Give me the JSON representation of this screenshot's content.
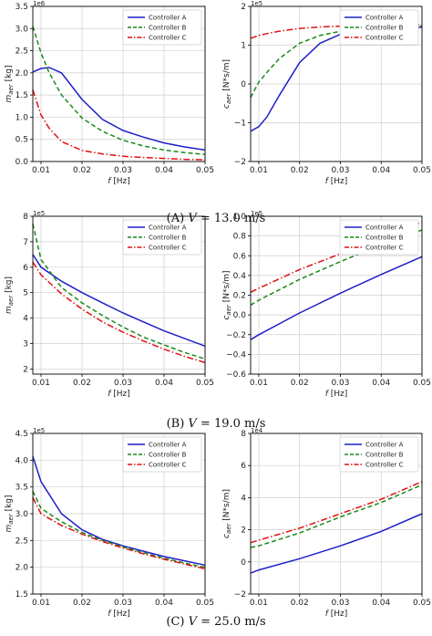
{
  "colors": {
    "Controller A": "#1f1fc8",
    "Controller B": "#1a8a1a",
    "Controller C": "#e01010"
  },
  "captions": [
    "(A) V = 13.0 m/s",
    "(B) V = 19.0 m/s",
    "(C) V = 25.0 m/s"
  ],
  "chart_data": [
    {
      "type": "line",
      "row": 0,
      "col": 0,
      "xlabel": "f [Hz]",
      "ylabel": "m_aer [kg]",
      "multiplier": "1e6",
      "xlim": [
        0.008,
        0.05
      ],
      "ylim": [
        0,
        3.5
      ],
      "xticks": [
        "0.01",
        "0.02",
        "0.03",
        "0.04",
        "0.05"
      ],
      "xtick_values": [
        0.01,
        0.02,
        0.03,
        0.04,
        0.05
      ],
      "yticks": [
        "0.0",
        "0.5",
        "1.0",
        "1.5",
        "2.0",
        "2.5",
        "3.0",
        "3.5"
      ],
      "ytick_values": [
        0,
        0.5,
        1,
        1.5,
        2,
        2.5,
        3,
        3.5
      ],
      "legend": "top-right",
      "x": [
        0.008,
        0.01,
        0.012,
        0.015,
        0.02,
        0.025,
        0.03,
        0.035,
        0.04,
        0.045,
        0.05
      ],
      "series": [
        {
          "name": "Controller A",
          "style": "solid",
          "values": [
            2.02,
            2.1,
            2.12,
            2.0,
            1.4,
            0.95,
            0.7,
            0.55,
            0.42,
            0.33,
            0.26
          ]
        },
        {
          "name": "Controller B",
          "style": "dashed",
          "values": [
            3.05,
            2.45,
            2.0,
            1.5,
            0.98,
            0.68,
            0.48,
            0.35,
            0.26,
            0.2,
            0.16
          ]
        },
        {
          "name": "Controller C",
          "style": "dashdot",
          "values": [
            1.62,
            1.05,
            0.75,
            0.45,
            0.25,
            0.17,
            0.12,
            0.09,
            0.07,
            0.05,
            0.04
          ]
        }
      ]
    },
    {
      "type": "line",
      "row": 0,
      "col": 1,
      "xlabel": "f [Hz]",
      "ylabel": "c_aer [N*s/m]",
      "multiplier": "1e5",
      "xlim": [
        0.008,
        0.05
      ],
      "ylim": [
        -2,
        2
      ],
      "xticks": [
        "0.01",
        "0.02",
        "0.03",
        "0.04",
        "0.05"
      ],
      "xtick_values": [
        0.01,
        0.02,
        0.03,
        0.04,
        0.05
      ],
      "yticks": [
        "−2",
        "−1",
        "0",
        "1",
        "2"
      ],
      "ytick_values": [
        -2,
        -1,
        0,
        1,
        2
      ],
      "legend": "top-right",
      "x": [
        0.008,
        0.01,
        0.012,
        0.015,
        0.02,
        0.025,
        0.03,
        0.035,
        0.04,
        0.045,
        0.05
      ],
      "series": [
        {
          "name": "Controller A",
          "style": "solid",
          "values": [
            -1.22,
            -1.1,
            -0.85,
            -0.3,
            0.55,
            1.05,
            1.28,
            1.38,
            1.42,
            1.45,
            1.46
          ]
        },
        {
          "name": "Controller B",
          "style": "dashed",
          "values": [
            -0.35,
            0.05,
            0.3,
            0.65,
            1.05,
            1.25,
            1.36,
            1.42,
            1.46,
            1.48,
            1.5
          ]
        },
        {
          "name": "Controller C",
          "style": "dashdot",
          "values": [
            1.18,
            1.25,
            1.3,
            1.36,
            1.43,
            1.47,
            1.49,
            1.51,
            1.52,
            1.52,
            1.52
          ]
        }
      ]
    },
    {
      "type": "line",
      "row": 1,
      "col": 0,
      "xlabel": "f [Hz]",
      "ylabel": "m_aer [kg]",
      "multiplier": "1e5",
      "xlim": [
        0.008,
        0.05
      ],
      "ylim": [
        1.8,
        8
      ],
      "xticks": [
        "0.01",
        "0.02",
        "0.03",
        "0.04",
        "0.05"
      ],
      "xtick_values": [
        0.01,
        0.02,
        0.03,
        0.04,
        0.05
      ],
      "yticks": [
        "2",
        "3",
        "4",
        "5",
        "6",
        "7",
        "8"
      ],
      "ytick_values": [
        2,
        3,
        4,
        5,
        6,
        7,
        8
      ],
      "legend": "top-right",
      "x": [
        0.008,
        0.01,
        0.015,
        0.02,
        0.025,
        0.03,
        0.035,
        0.04,
        0.045,
        0.05
      ],
      "series": [
        {
          "name": "Controller A",
          "style": "solid",
          "values": [
            6.5,
            6.0,
            5.45,
            5.0,
            4.6,
            4.2,
            3.85,
            3.5,
            3.2,
            2.9
          ]
        },
        {
          "name": "Controller B",
          "style": "dashed",
          "values": [
            7.7,
            6.3,
            5.2,
            4.6,
            4.1,
            3.65,
            3.25,
            2.95,
            2.65,
            2.4
          ]
        },
        {
          "name": "Controller C",
          "style": "dashdot",
          "values": [
            6.2,
            5.7,
            4.95,
            4.35,
            3.85,
            3.45,
            3.1,
            2.78,
            2.5,
            2.25
          ]
        }
      ]
    },
    {
      "type": "line",
      "row": 1,
      "col": 1,
      "xlabel": "f [Hz]",
      "ylabel": "c_aer [N*s/m]",
      "multiplier": "1e5",
      "xlim": [
        0.008,
        0.05
      ],
      "ylim": [
        -0.6,
        1.0
      ],
      "xticks": [
        "0.01",
        "0.02",
        "0.03",
        "0.04",
        "0.05"
      ],
      "xtick_values": [
        0.01,
        0.02,
        0.03,
        0.04,
        0.05
      ],
      "yticks": [
        "−0.6",
        "−0.4",
        "−0.2",
        "0.0",
        "0.2",
        "0.4",
        "0.6",
        "0.8",
        "1.0"
      ],
      "ytick_values": [
        -0.6,
        -0.4,
        -0.2,
        0,
        0.2,
        0.4,
        0.6,
        0.8,
        1.0
      ],
      "legend": "top-right",
      "x": [
        0.008,
        0.01,
        0.02,
        0.03,
        0.04,
        0.05
      ],
      "series": [
        {
          "name": "Controller A",
          "style": "solid",
          "values": [
            -0.25,
            -0.2,
            0.02,
            0.22,
            0.41,
            0.59
          ]
        },
        {
          "name": "Controller B",
          "style": "dashed",
          "values": [
            0.1,
            0.15,
            0.36,
            0.54,
            0.71,
            0.86
          ]
        },
        {
          "name": "Controller C",
          "style": "dashdot",
          "values": [
            0.23,
            0.27,
            0.46,
            0.62,
            0.79,
            0.94
          ]
        }
      ]
    },
    {
      "type": "line",
      "row": 2,
      "col": 0,
      "xlabel": "f [Hz]",
      "ylabel": "m_aer [kg]",
      "multiplier": "1e5",
      "xlim": [
        0.008,
        0.05
      ],
      "ylim": [
        1.5,
        4.5
      ],
      "xticks": [
        "0.01",
        "0.02",
        "0.03",
        "0.04",
        "0.05"
      ],
      "xtick_values": [
        0.01,
        0.02,
        0.03,
        0.04,
        0.05
      ],
      "yticks": [
        "1.5",
        "2.0",
        "2.5",
        "3.0",
        "3.5",
        "4.0",
        "4.5"
      ],
      "ytick_values": [
        1.5,
        2,
        2.5,
        3,
        3.5,
        4,
        4.5
      ],
      "legend": "top-right",
      "x": [
        0.008,
        0.01,
        0.015,
        0.02,
        0.025,
        0.03,
        0.035,
        0.04,
        0.045,
        0.05
      ],
      "series": [
        {
          "name": "Controller A",
          "style": "solid",
          "values": [
            4.07,
            3.6,
            3.0,
            2.7,
            2.52,
            2.4,
            2.3,
            2.2,
            2.12,
            2.04
          ]
        },
        {
          "name": "Controller B",
          "style": "dashed",
          "values": [
            3.42,
            3.1,
            2.85,
            2.65,
            2.5,
            2.38,
            2.27,
            2.17,
            2.08,
            2.0
          ]
        },
        {
          "name": "Controller C",
          "style": "dashdot",
          "values": [
            3.3,
            3.0,
            2.78,
            2.62,
            2.48,
            2.36,
            2.25,
            2.15,
            2.06,
            1.97
          ]
        }
      ]
    },
    {
      "type": "line",
      "row": 2,
      "col": 1,
      "xlabel": "f [Hz]",
      "ylabel": "c_aer [N*s/m]",
      "multiplier": "1e4",
      "xlim": [
        0.008,
        0.05
      ],
      "ylim": [
        -2,
        8
      ],
      "xticks": [
        "0.01",
        "0.02",
        "0.03",
        "0.04",
        "0.05"
      ],
      "xtick_values": [
        0.01,
        0.02,
        0.03,
        0.04,
        0.05
      ],
      "yticks": [
        "−2",
        "0",
        "2",
        "4",
        "6",
        "8"
      ],
      "ytick_values": [
        -2,
        0,
        2,
        4,
        6,
        8
      ],
      "legend": "top-right",
      "x": [
        0.008,
        0.01,
        0.02,
        0.03,
        0.04,
        0.05
      ],
      "series": [
        {
          "name": "Controller A",
          "style": "solid",
          "values": [
            -0.7,
            -0.5,
            0.2,
            1.0,
            1.9,
            3.0
          ]
        },
        {
          "name": "Controller B",
          "style": "dashed",
          "values": [
            0.9,
            1.0,
            1.8,
            2.8,
            3.7,
            4.8
          ]
        },
        {
          "name": "Controller C",
          "style": "dashdot",
          "values": [
            1.2,
            1.35,
            2.1,
            3.0,
            3.9,
            5.0
          ]
        }
      ]
    }
  ]
}
